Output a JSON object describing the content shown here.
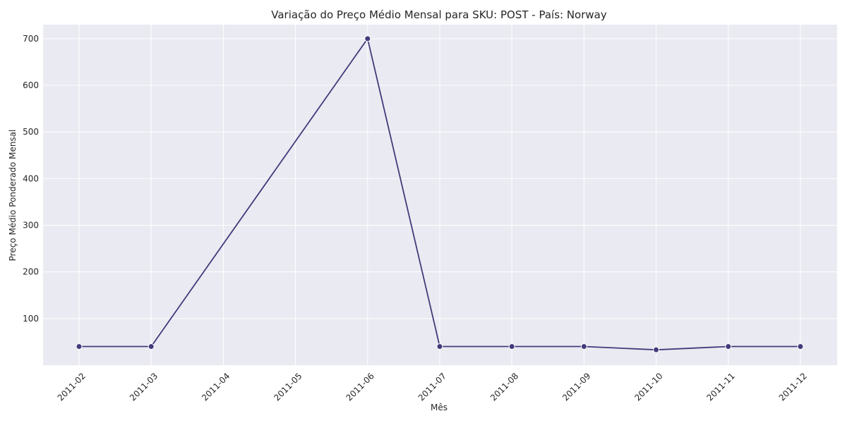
{
  "chart_data": {
    "type": "line",
    "title": "Variação do Preço Médio Mensal para SKU: POST - País: Norway",
    "xlabel": "Mês",
    "ylabel": "Preço Médio Ponderado Mensal",
    "x_ticks": [
      "2011-02",
      "2011-03",
      "2011-04",
      "2011-05",
      "2011-06",
      "2011-07",
      "2011-08",
      "2011-09",
      "2011-10",
      "2011-11",
      "2011-12"
    ],
    "y_ticks": [
      100,
      200,
      300,
      400,
      500,
      600,
      700
    ],
    "ylim": [
      0,
      730
    ],
    "grid": true,
    "series": [
      {
        "x": [
          "2011-02",
          "2011-03",
          "2011-06",
          "2011-07",
          "2011-08",
          "2011-09",
          "2011-10",
          "2011-11",
          "2011-12"
        ],
        "y": [
          40,
          40,
          700,
          40,
          40,
          40,
          33,
          40,
          40
        ],
        "color": "#433a7a"
      }
    ],
    "background_color": "#eaeaf2"
  }
}
